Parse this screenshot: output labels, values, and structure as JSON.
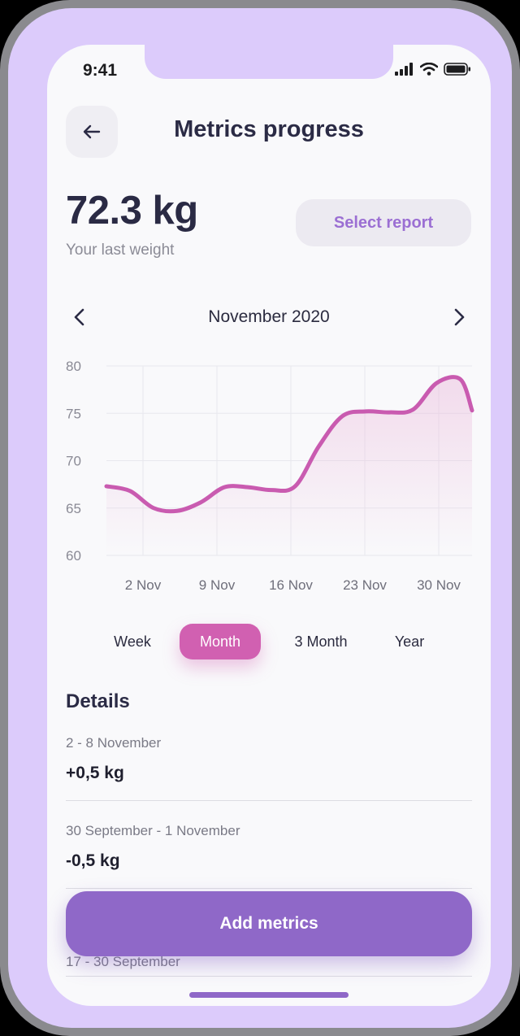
{
  "status_bar": {
    "time": "9:41"
  },
  "header": {
    "title": "Metrics progress",
    "back_icon": "arrow-left-icon"
  },
  "summary": {
    "value": "72.3 kg",
    "label": "Your last weight",
    "select_report_label": "Select report"
  },
  "month_nav": {
    "label": "November 2020",
    "prev_icon": "chevron-left-icon",
    "next_icon": "chevron-right-icon"
  },
  "chart_data": {
    "type": "line",
    "x": [
      0,
      2,
      4,
      6,
      8,
      10,
      12,
      14,
      16,
      18,
      20,
      22,
      24,
      26,
      28,
      30,
      31
    ],
    "xlabels": [
      "2 Nov",
      "9 Nov",
      "16 Nov",
      "23  Nov",
      "30 Nov"
    ],
    "ylim": [
      60,
      80
    ],
    "yticks": [
      80,
      75,
      70,
      65,
      60
    ],
    "values": [
      67.3,
      66.8,
      65.0,
      64.7,
      65.6,
      67.2,
      67.2,
      66.9,
      67.3,
      71.5,
      74.7,
      75.2,
      75.1,
      75.4,
      78.2,
      78.6,
      75.3
    ],
    "line_color": "#c95bb0",
    "grid": true
  },
  "ranges": {
    "week": "Week",
    "month": "Month",
    "three_month": "3 Month",
    "year": "Year",
    "active": "Month",
    "active_color": "#d160b1"
  },
  "details": {
    "title": "Details",
    "rows": [
      {
        "range": "2 - 8 November",
        "value": "+0,5 kg"
      },
      {
        "range": "30 September - 1 November",
        "value": "-0,5 kg"
      },
      {
        "range": "17 - 30 September",
        "value": "+"
      }
    ]
  },
  "actions": {
    "add_metrics_label": "Add metrics"
  },
  "colors": {
    "accent": "#8f68c8",
    "frame": "#dccbfb",
    "text_dark": "#2b2b45"
  }
}
